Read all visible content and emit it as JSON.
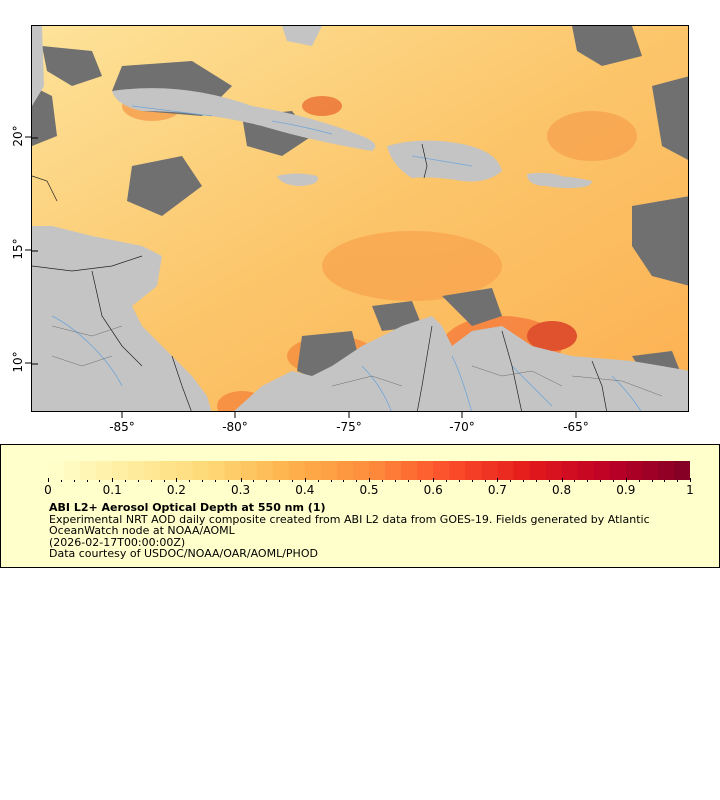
{
  "map": {
    "lat_labels": [
      "20°",
      "15°",
      "10°"
    ],
    "lon_labels": [
      "-85°",
      "-80°",
      "-75°",
      "-70°",
      "-65°"
    ],
    "colors": {
      "land": "#c4c4c4",
      "no_data_cloud": "#707070",
      "aod_low": "#ffffcc",
      "aod_mid": "#fd8d3c",
      "aod_high": "#800026",
      "rivers": "#6fa6d8",
      "borders": "#000000"
    }
  },
  "legend": {
    "ticks": [
      "0",
      "0.1",
      "0.2",
      "0.3",
      "0.4",
      "0.5",
      "0.6",
      "0.7",
      "0.8",
      "0.9",
      "1"
    ],
    "title": "ABI L2+ Aerosol Optical Depth at 550 nm (1)",
    "line1": "Experimental NRT AOD daily composite created from ABI L2 data from GOES-19. Fields generated by Atlantic OceanWatch node at NOAA/AOML",
    "line2": "(2026-02-17T00:00:00Z)",
    "line3": "Data courtesy of USDOC/NOAA/OAR/AOML/PHOD",
    "colormap": [
      "#ffffcc",
      "#ffeda0",
      "#fed976",
      "#feb24c",
      "#fd8d3c",
      "#fc4e2a",
      "#e31a1c",
      "#bd0026",
      "#800026"
    ]
  }
}
